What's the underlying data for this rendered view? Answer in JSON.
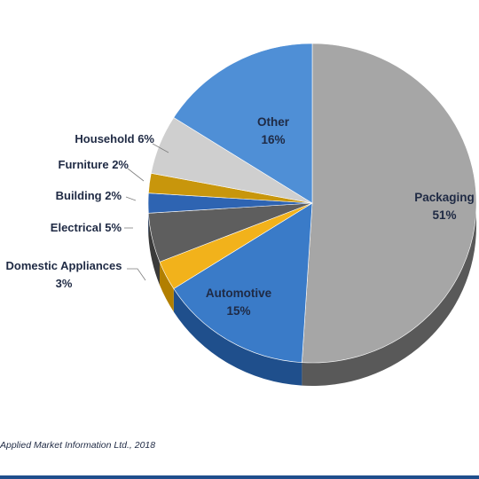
{
  "chart_data": {
    "type": "pie",
    "slices": [
      {
        "label": "Packaging",
        "value": 51,
        "value_label": "51%",
        "color": "#a6a6a6",
        "side": "#595959"
      },
      {
        "label": "Automotive",
        "value": 15,
        "value_label": "15%",
        "color": "#3a7bc8",
        "side": "#1f4f8c"
      },
      {
        "label": "Domestic Appliances",
        "value": 3,
        "value_label": "3%",
        "color": "#f2b21b",
        "side": "#b27f00"
      },
      {
        "label": "Electrical",
        "value": 5,
        "value_label": "5%",
        "color": "#5e5e5e",
        "side": "#3a3a3a"
      },
      {
        "label": "Building",
        "value": 2,
        "value_label": "2%",
        "color": "#2e64b2",
        "side": "#1e4a88"
      },
      {
        "label": "Furniture",
        "value": 2,
        "value_label": "2%",
        "color": "#c8960c",
        "side": "#8f6b06"
      },
      {
        "label": "Household",
        "value": 6,
        "value_label": "6%",
        "color": "#cfcfcf",
        "side": "#9a9a9a"
      },
      {
        "label": "Other",
        "value": 16,
        "value_label": "16%",
        "color": "#4f8fd6",
        "side": "#2e5f9a"
      }
    ],
    "title": "",
    "legend": "none"
  },
  "labels": {
    "packaging": {
      "name": "Packaging",
      "pct": "51%"
    },
    "automotive": {
      "name": "Automotive",
      "pct": "15%"
    },
    "other": {
      "name": "Other",
      "pct": "16%"
    },
    "household": "Household 6%",
    "furniture": "Furniture 2%",
    "building": "Building 2%",
    "electrical": "Electrical 5%",
    "domestic": {
      "line1": "Domestic Appliances",
      "line2": "3%"
    }
  },
  "source": "Applied Market Information Ltd., 2018",
  "colors": {
    "bottom_rule": "#1f4e8c",
    "label_text": "#1f2a44"
  }
}
